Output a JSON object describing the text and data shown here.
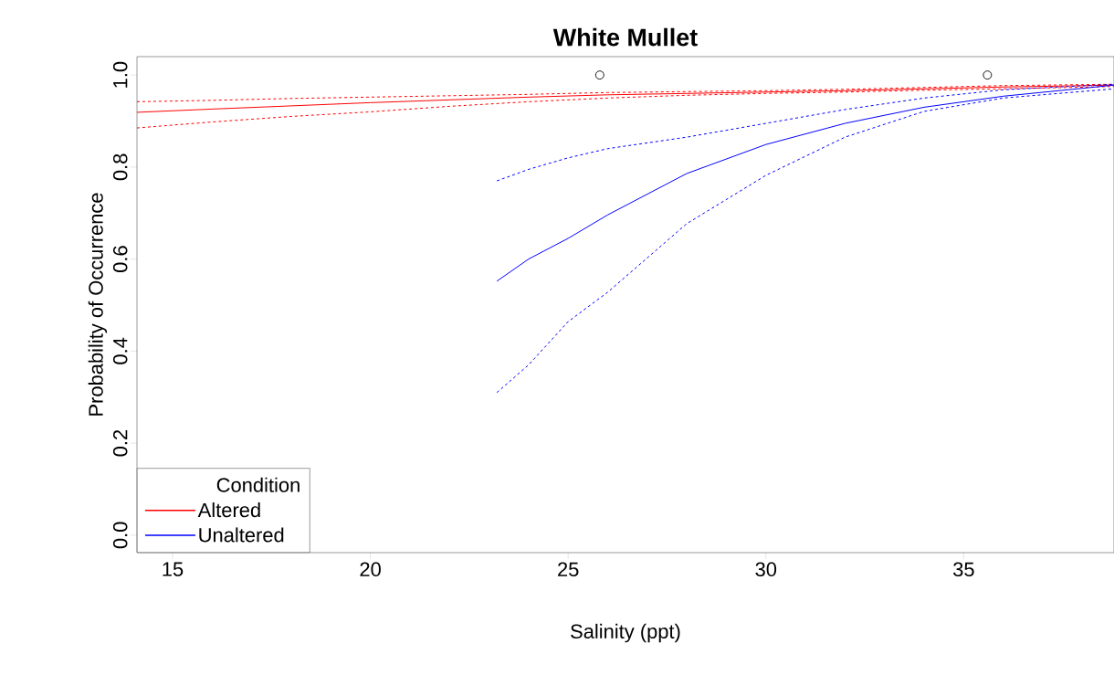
{
  "chart_data": {
    "type": "line",
    "title": "White Mullet",
    "xlabel": "Salinity (ppt)",
    "ylabel": "Probability of Occurrence",
    "legend_title": "Condition",
    "legend": "bottom left",
    "grid": false,
    "xlim": [
      14.1,
      38.8
    ],
    "ylim": [
      -0.038,
      1.04
    ],
    "xticks": [
      15,
      20,
      25,
      30,
      35
    ],
    "yticks": [
      {
        "value": 0,
        "label": "0.0"
      },
      0.2,
      0.4,
      0.6,
      0.8,
      {
        "value": 1,
        "label": "1.0"
      }
    ],
    "series": [
      {
        "name": "Altered",
        "color": "#ff0000",
        "line_style": "solid",
        "x": [
          14.1,
          16,
          18,
          20,
          22,
          24,
          26,
          28,
          30,
          32,
          34,
          36,
          38.8
        ],
        "values": [
          0.919,
          0.926,
          0.933,
          0.94,
          0.946,
          0.952,
          0.957,
          0.96,
          0.963,
          0.966,
          0.97,
          0.974,
          0.978
        ]
      },
      {
        "color": "#ff0000",
        "line_style": "dashed",
        "x": [
          14.1,
          16,
          18,
          20,
          22,
          24,
          26,
          28,
          30,
          32,
          34,
          36,
          38.8
        ],
        "values": [
          0.885,
          0.898,
          0.91,
          0.92,
          0.932,
          0.942,
          0.95,
          0.956,
          0.96,
          0.963,
          0.967,
          0.97,
          0.975
        ]
      },
      {
        "color": "#ff0000",
        "line_style": "dashed",
        "x": [
          14.1,
          16,
          18,
          20,
          22,
          24,
          26,
          28,
          30,
          32,
          34,
          36,
          38.8
        ],
        "values": [
          0.942,
          0.945,
          0.949,
          0.952,
          0.955,
          0.958,
          0.962,
          0.964,
          0.966,
          0.969,
          0.973,
          0.977,
          0.98
        ]
      },
      {
        "name": "Unaltered",
        "color": "#0000ff",
        "line_style": "solid",
        "x": [
          23.2,
          24,
          25,
          26,
          28,
          30,
          32,
          34,
          36,
          38.8
        ],
        "values": [
          0.552,
          0.6,
          0.645,
          0.696,
          0.786,
          0.849,
          0.895,
          0.93,
          0.954,
          0.978
        ]
      },
      {
        "color": "#0000ff",
        "line_style": "dashed",
        "x": [
          23.2,
          24,
          25,
          26,
          28,
          30,
          32,
          34,
          36,
          38.8
        ],
        "values": [
          0.31,
          0.37,
          0.464,
          0.528,
          0.677,
          0.782,
          0.865,
          0.921,
          0.95,
          0.97
        ]
      },
      {
        "color": "#0000ff",
        "line_style": "dashed",
        "x": [
          23.2,
          24,
          25,
          26,
          28,
          30,
          32,
          34,
          36,
          38.8
        ],
        "values": [
          0.77,
          0.795,
          0.82,
          0.84,
          0.865,
          0.895,
          0.925,
          0.95,
          0.968,
          0.98
        ]
      },
      {
        "type": "scatter",
        "color": "#000000",
        "marker": "circle",
        "x": [
          25.8,
          35.6
        ],
        "values": [
          1.0,
          1.0
        ]
      }
    ]
  }
}
